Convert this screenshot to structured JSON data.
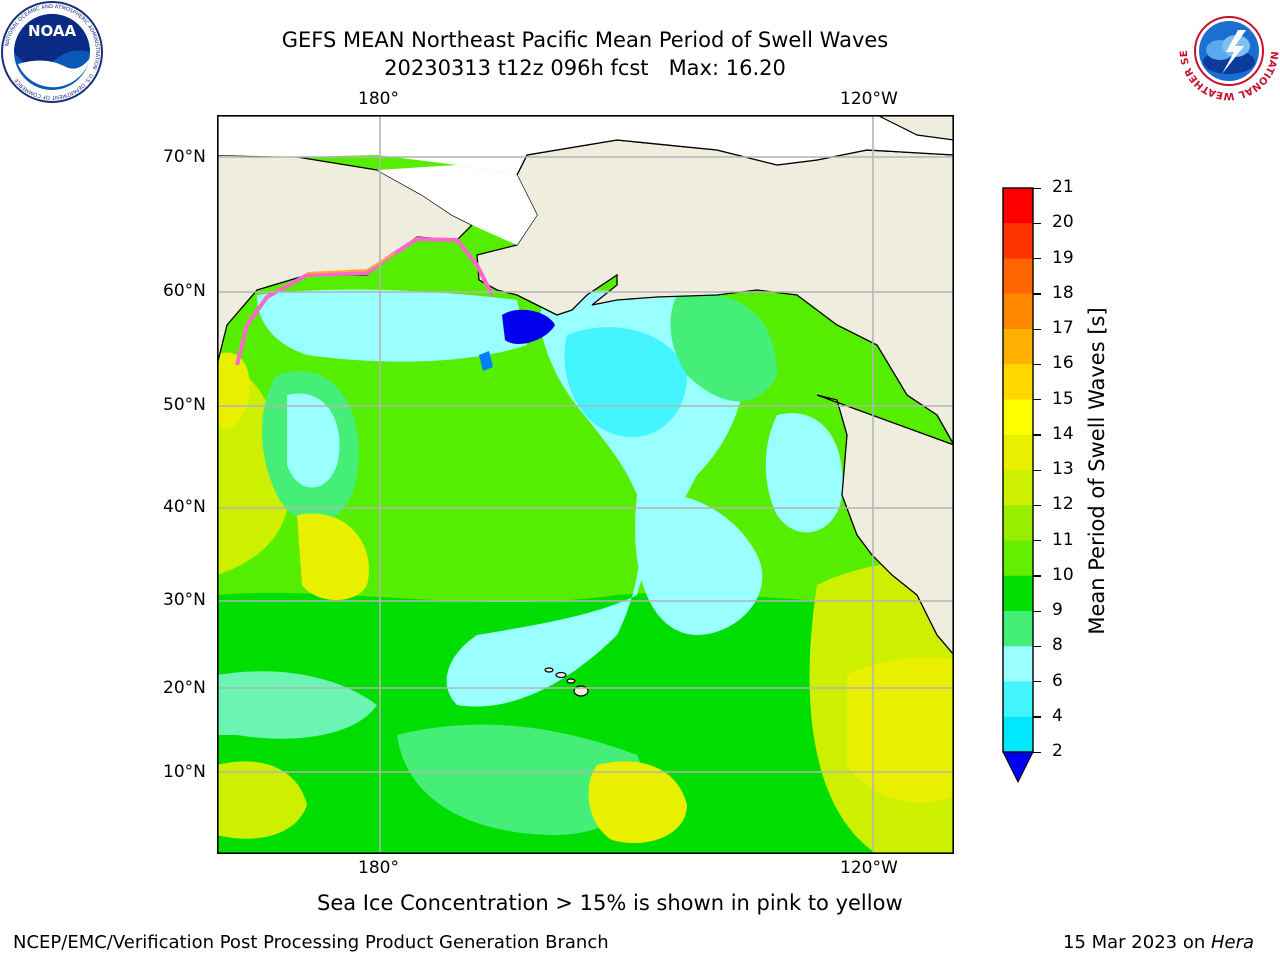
{
  "header": {
    "title_line1": "GEFS MEAN Northeast Pacific Mean Period of Swell Waves",
    "title_line2": "20230313 t12z 096h fcst   Max: 16.20"
  },
  "logos": {
    "left_text": "NOAA",
    "left_ring_text": "NATIONAL OCEANIC AND ATMOSPHERIC ADMINISTRATION · U.S. DEPARTMENT OF COMMERCE",
    "right_ring_text": "NATIONAL WEATHER SERVICE"
  },
  "axes": {
    "top_ticks": [
      "180°",
      "120°W"
    ],
    "bottom_ticks": [
      "180°",
      "120°W"
    ],
    "lat_ticks": [
      "70°N",
      "60°N",
      "50°N",
      "40°N",
      "30°N",
      "20°N",
      "10°N"
    ]
  },
  "colorbar": {
    "label": "Mean Period of Swell Waves [s]",
    "ticks": [
      "21",
      "20",
      "19",
      "18",
      "17",
      "16",
      "15",
      "14",
      "13",
      "12",
      "11",
      "10",
      "9",
      "8",
      "6",
      "4",
      "2"
    ],
    "colors": [
      "#ff0000",
      "#ff3300",
      "#ff6600",
      "#ff8800",
      "#ffb000",
      "#ffd800",
      "#ffff00",
      "#e8f000",
      "#ccf000",
      "#99ee00",
      "#66ee00",
      "#00dd00",
      "#44ee77",
      "#99ffff",
      "#44f4ff",
      "#00e8ff",
      "#0080ff"
    ],
    "extend_color": "#0000ee"
  },
  "note": "Sea Ice Concentration > 15% is shown in pink to yellow",
  "footer": {
    "left": "NCEP/EMC/Verification Post Processing Product Generation Branch",
    "right_date": "15 Mar 2023 on ",
    "right_machine": "Hera"
  },
  "colors": {
    "land": "#efedde",
    "ocean_main": "#55ee00",
    "ocean_light": "#99ffff",
    "ocean_cyan": "#44f4ff",
    "ocean_green": "#44ee77",
    "ocean_yellow": "#e8f000",
    "ocean_lime": "#ccf000",
    "deep_blue": "#0000ee",
    "grid": "#b4b4b4",
    "ice_pink": "#ff66cc",
    "ice_orange": "#ffaa33"
  }
}
